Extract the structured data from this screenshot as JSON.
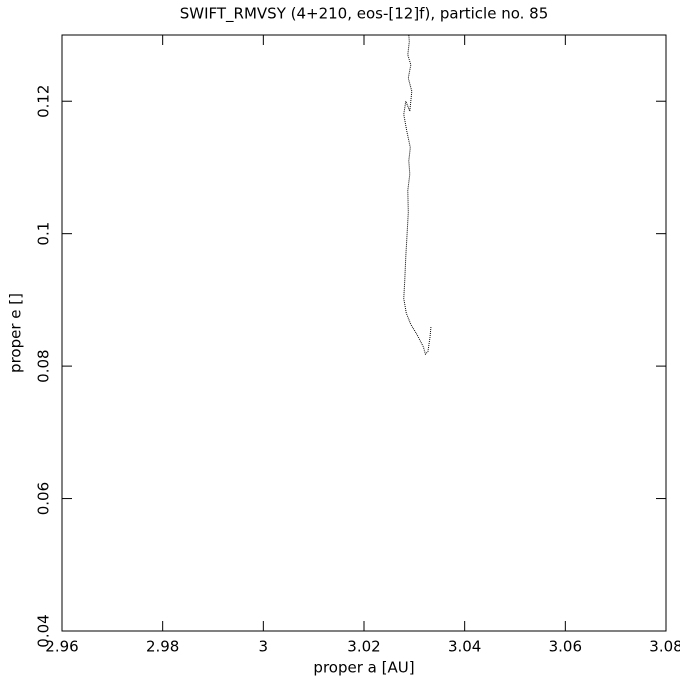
{
  "chart_data": {
    "type": "line",
    "title": "SWIFT_RMVSY (4+210, eos-[12]f), particle no. 85",
    "xlabel": "proper a [AU]",
    "ylabel": "proper e []",
    "x": [
      3.0333,
      3.0331,
      3.0327,
      3.0322,
      3.0318,
      3.0305,
      3.0293,
      3.0284,
      3.0279,
      3.0281,
      3.0283,
      3.0286,
      3.0288,
      3.0287,
      3.0291,
      3.0289,
      3.0292,
      3.0285,
      3.0279,
      3.0283,
      3.0291,
      3.0295,
      3.0288,
      3.0293,
      3.0287,
      3.029,
      3.0289
    ],
    "values": [
      0.0859,
      0.0843,
      0.0822,
      0.0818,
      0.0829,
      0.0848,
      0.0863,
      0.088,
      0.0902,
      0.093,
      0.0965,
      0.1005,
      0.1032,
      0.1065,
      0.109,
      0.111,
      0.113,
      0.1155,
      0.118,
      0.12,
      0.1185,
      0.1215,
      0.1235,
      0.1255,
      0.127,
      0.129,
      0.13
    ],
    "color": "#000000",
    "xlim": [
      2.96,
      3.08
    ],
    "xticks": [
      2.96,
      2.98,
      3,
      3.02,
      3.04,
      3.06,
      3.08
    ],
    "ylim": [
      0.04,
      0.13
    ],
    "yticks": [
      0.04,
      0.06,
      0.08,
      0.1,
      0.12
    ]
  }
}
